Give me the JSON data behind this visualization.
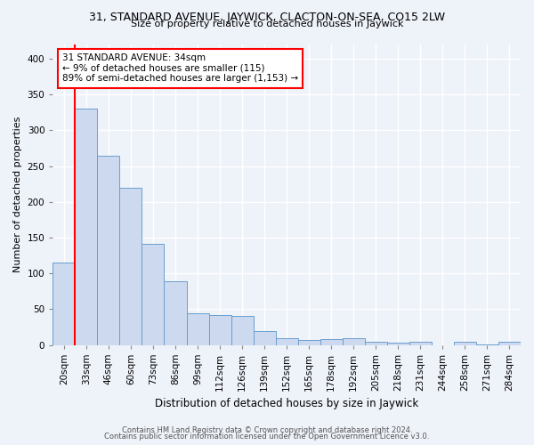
{
  "title": "31, STANDARD AVENUE, JAYWICK, CLACTON-ON-SEA, CO15 2LW",
  "subtitle": "Size of property relative to detached houses in Jaywick",
  "xlabel": "Distribution of detached houses by size in Jaywick",
  "ylabel": "Number of detached properties",
  "categories": [
    "20sqm",
    "33sqm",
    "46sqm",
    "60sqm",
    "73sqm",
    "86sqm",
    "99sqm",
    "112sqm",
    "126sqm",
    "139sqm",
    "152sqm",
    "165sqm",
    "178sqm",
    "192sqm",
    "205sqm",
    "218sqm",
    "231sqm",
    "244sqm",
    "258sqm",
    "271sqm",
    "284sqm"
  ],
  "values": [
    115,
    330,
    265,
    220,
    141,
    89,
    44,
    42,
    41,
    19,
    9,
    7,
    8,
    9,
    4,
    3,
    4,
    0,
    4,
    1,
    4
  ],
  "bar_color": "#ccd9ee",
  "bar_edge_color": "#6a9fd0",
  "red_line_index": 1,
  "annotation_text": "31 STANDARD AVENUE: 34sqm\n← 9% of detached houses are smaller (115)\n89% of semi-detached houses are larger (1,153) →",
  "annotation_box_color": "white",
  "annotation_box_edge_color": "red",
  "ylim": [
    0,
    420
  ],
  "yticks": [
    0,
    50,
    100,
    150,
    200,
    250,
    300,
    350,
    400
  ],
  "footer_line1": "Contains HM Land Registry data © Crown copyright and database right 2024.",
  "footer_line2": "Contains public sector information licensed under the Open Government Licence v3.0.",
  "background_color": "#eef2f9",
  "grid_color": "white",
  "title_fontsize": 9,
  "subtitle_fontsize": 8,
  "xlabel_fontsize": 8.5,
  "ylabel_fontsize": 8,
  "tick_fontsize": 7.5,
  "annotation_fontsize": 7.5,
  "footer_fontsize": 6
}
